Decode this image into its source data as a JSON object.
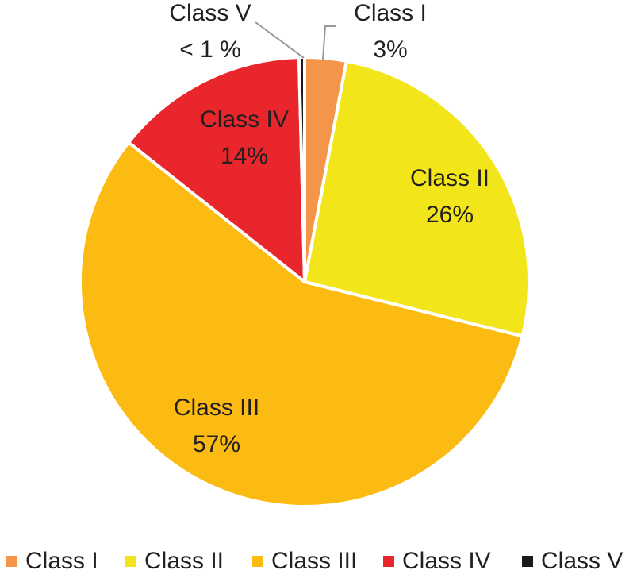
{
  "chart_data": {
    "type": "pie",
    "categories": [
      "Class I",
      "Class II",
      "Class III",
      "Class IV",
      "Class V"
    ],
    "values": [
      3,
      26,
      57,
      14,
      0.4
    ],
    "value_labels": [
      "3%",
      "26%",
      "57%",
      "14%",
      "< 1 %"
    ],
    "colors": [
      "#f4954a",
      "#f2e61a",
      "#fbbb12",
      "#e8262b",
      "#1a1a1a"
    ],
    "legend": "bottom"
  }
}
